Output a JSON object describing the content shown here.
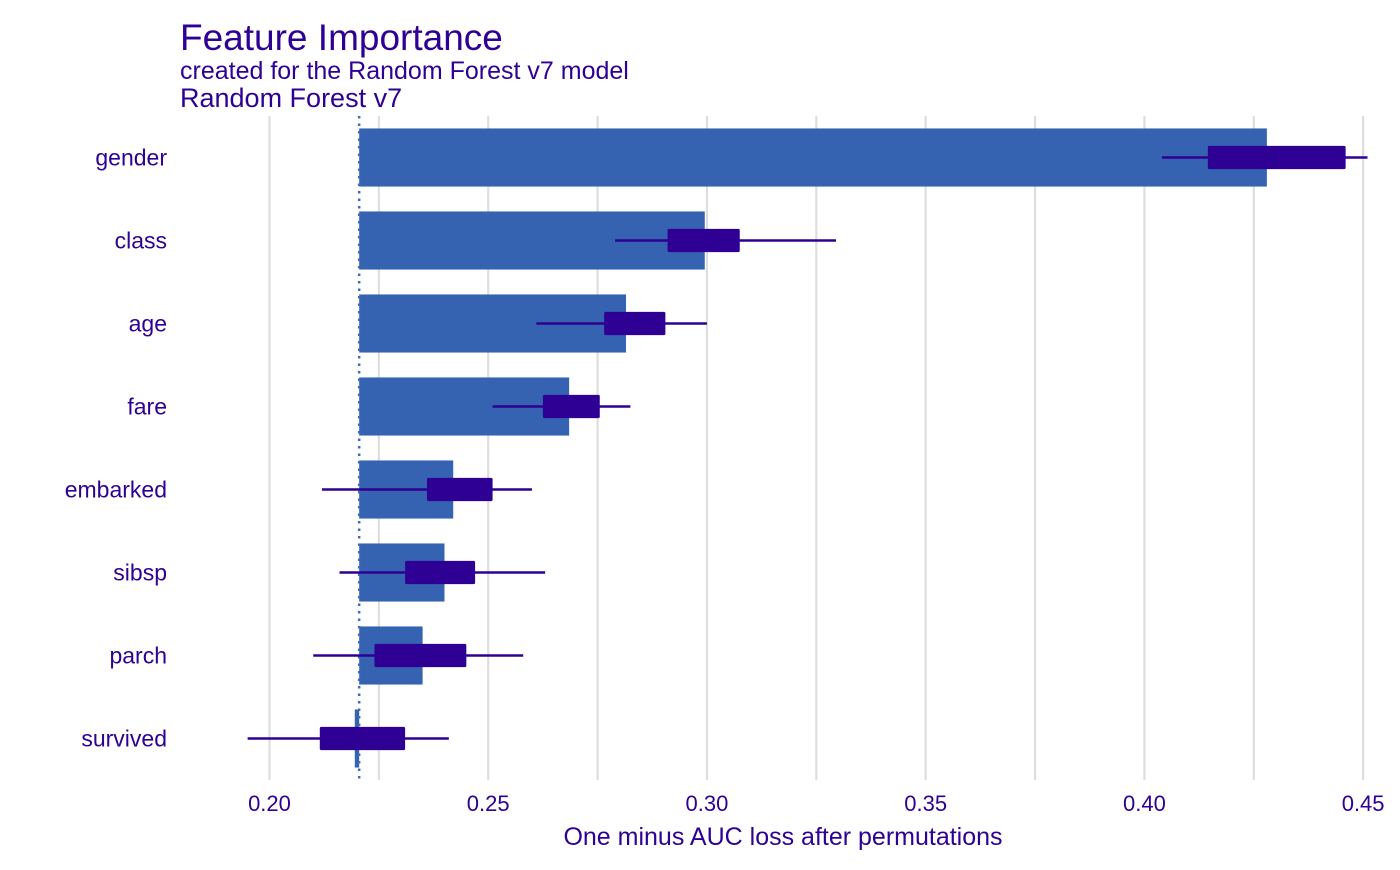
{
  "chart_data": {
    "type": "bar",
    "title": "Feature Importance",
    "subtitle": "created for the Random Forest v7 model",
    "model_label": "Random Forest v7",
    "xlabel": "One minus AUC loss after permutations",
    "ylabel": "",
    "xlim": [
      0.18,
      0.455
    ],
    "xticks": [
      0.2,
      0.25,
      0.3,
      0.35,
      0.4,
      0.45
    ],
    "xtick_labels": [
      "0.20",
      "0.25",
      "0.30",
      "0.35",
      "0.40",
      "0.45"
    ],
    "baseline": 0.2205,
    "grid": true,
    "legend": "none",
    "categories": [
      "gender",
      "class",
      "age",
      "fare",
      "embarked",
      "sibsp",
      "parch",
      "survived"
    ],
    "values": [
      0.428,
      0.2995,
      0.2815,
      0.2685,
      0.242,
      0.24,
      0.235,
      0.2195
    ],
    "boxplots": [
      {
        "min": 0.404,
        "q1": 0.4145,
        "q3": 0.446,
        "max": 0.451
      },
      {
        "min": 0.279,
        "q1": 0.291,
        "q3": 0.3075,
        "max": 0.3295
      },
      {
        "min": 0.261,
        "q1": 0.2765,
        "q3": 0.2905,
        "max": 0.3
      },
      {
        "min": 0.251,
        "q1": 0.2625,
        "q3": 0.2755,
        "max": 0.2825
      },
      {
        "min": 0.212,
        "q1": 0.236,
        "q3": 0.251,
        "max": 0.26
      },
      {
        "min": 0.216,
        "q1": 0.231,
        "q3": 0.247,
        "max": 0.263
      },
      {
        "min": 0.21,
        "q1": 0.224,
        "q3": 0.245,
        "max": 0.258
      },
      {
        "min": 0.195,
        "q1": 0.2115,
        "q3": 0.231,
        "max": 0.241
      }
    ],
    "colors": {
      "bar": "#3563b2",
      "box": "#2e0094",
      "text": "#2e0094",
      "grid": "#dedede",
      "baseline": "#3d6db8"
    }
  }
}
